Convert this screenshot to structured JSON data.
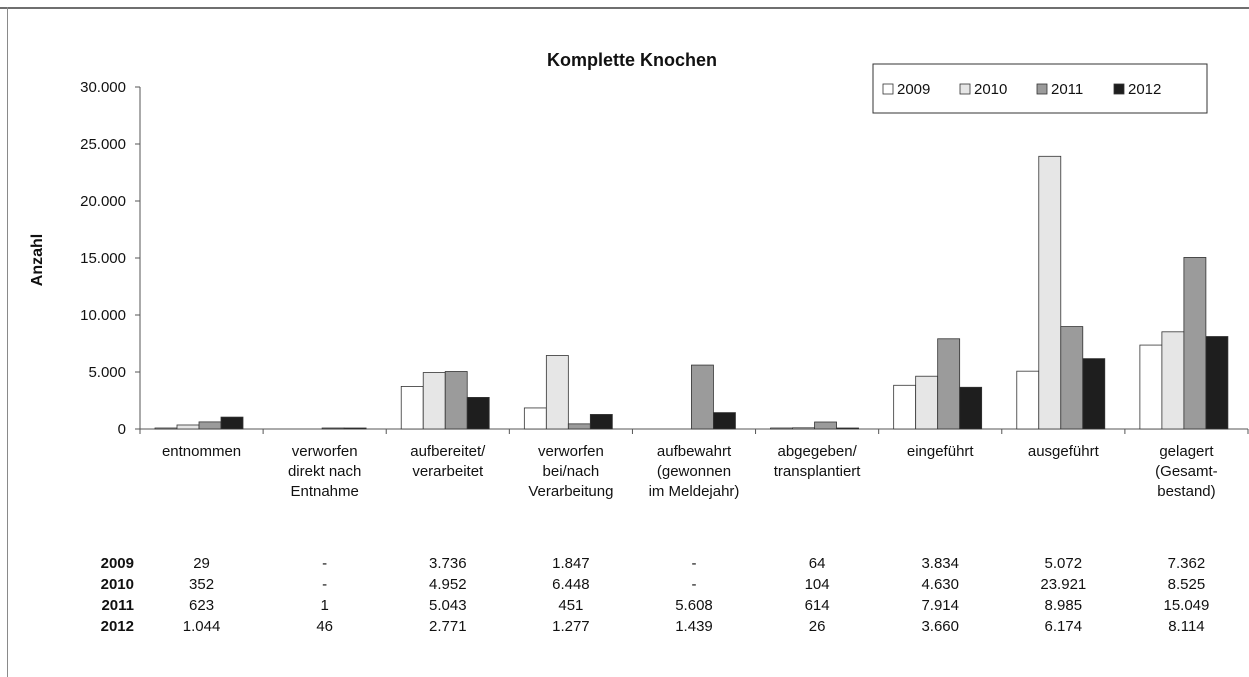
{
  "chart_data": {
    "type": "bar",
    "title": "Komplette Knochen",
    "xlabel": "",
    "ylabel": "Anzahl",
    "ylim": [
      0,
      30000
    ],
    "yticks": [
      0,
      5000,
      10000,
      15000,
      20000,
      25000,
      30000
    ],
    "ytick_labels": [
      "0",
      "5.000",
      "10.000",
      "15.000",
      "20.000",
      "25.000",
      "30.000"
    ],
    "grid": false,
    "legend_position": "top-right",
    "categories": [
      [
        "entnommen"
      ],
      [
        "verworfen",
        "direkt nach",
        "Entnahme"
      ],
      [
        "aufbereitet/",
        "verarbeitet"
      ],
      [
        "verworfen",
        "bei/nach",
        "Verarbeitung"
      ],
      [
        "aufbewahrt",
        "(gewonnen",
        "im Meldejahr)"
      ],
      [
        "abgegeben/",
        "transplantiert"
      ],
      [
        "eingeführt"
      ],
      [
        "ausgeführt"
      ],
      [
        "gelagert",
        "(Gesamt-",
        "bestand)"
      ]
    ],
    "series": [
      {
        "name": "2009",
        "color": "#ffffff",
        "values": [
          29,
          0,
          3736,
          1847,
          0,
          64,
          3834,
          5072,
          7362
        ],
        "table": [
          "29",
          "-",
          "3.736",
          "1.847",
          "-",
          "64",
          "3.834",
          "5.072",
          "7.362"
        ]
      },
      {
        "name": "2010",
        "color": "#e6e6e6",
        "values": [
          352,
          0,
          4952,
          6448,
          0,
          104,
          4630,
          23921,
          8525
        ],
        "table": [
          "352",
          "-",
          "4.952",
          "6.448",
          "-",
          "104",
          "4.630",
          "23.921",
          "8.525"
        ]
      },
      {
        "name": "2011",
        "color": "#9b9b9b",
        "values": [
          623,
          1,
          5043,
          451,
          5608,
          614,
          7914,
          8985,
          15049
        ],
        "table": [
          "623",
          "1",
          "5.043",
          "451",
          "5.608",
          "614",
          "7.914",
          "8.985",
          "15.049"
        ]
      },
      {
        "name": "2012",
        "color": "#1e1e1e",
        "values": [
          1044,
          46,
          2771,
          1277,
          1439,
          26,
          3660,
          6174,
          8114
        ],
        "table": [
          "1.044",
          "46",
          "2.771",
          "1.277",
          "1.439",
          "26",
          "3.660",
          "6.174",
          "8.114"
        ]
      }
    ]
  }
}
